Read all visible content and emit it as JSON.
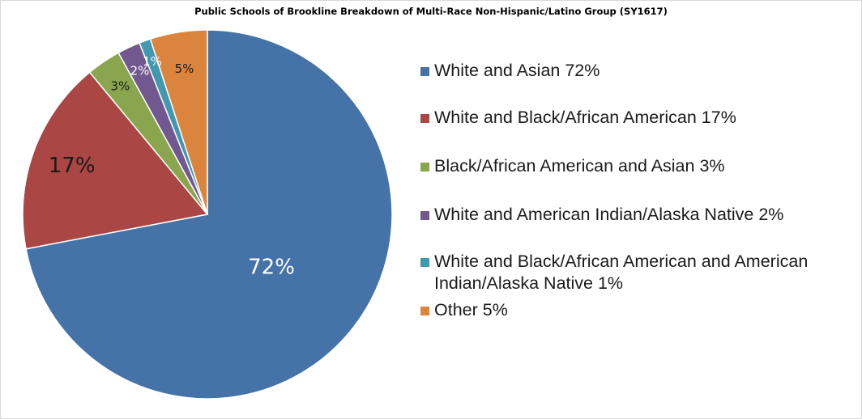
{
  "chart_data": {
    "type": "pie",
    "title": "Public Schools of Brookline Breakdown of Multi-Race Non-Hispanic/Latino Group (SY1617)",
    "slices": [
      {
        "label": "White and Asian",
        "value": 72,
        "data_label": "72%",
        "legend": "White and Asian 72%",
        "color": "#4572a7"
      },
      {
        "label": "White and Black/African American",
        "value": 17,
        "data_label": "17%",
        "legend": "White and Black/African American 17%",
        "color": "#aa4643"
      },
      {
        "label": "Black/African American and Asian",
        "value": 3,
        "data_label": "3%",
        "legend": "Black/African American and Asian 3%",
        "color": "#89a54e"
      },
      {
        "label": "White and American Indian/Alaska Native",
        "value": 2,
        "data_label": "2%",
        "legend": "White and American Indian/Alaska Native 2%",
        "color": "#71588f"
      },
      {
        "label": "White and Black/African American and American Indian/Alaska Native",
        "value": 1,
        "data_label": "1%",
        "legend": "White and Black/African American and American Indian/Alaska Native 1%",
        "color": "#4198af"
      },
      {
        "label": "Other",
        "value": 5,
        "data_label": "5%",
        "legend": "Other 5%",
        "color": "#db843d"
      }
    ],
    "legend_position": "right"
  }
}
